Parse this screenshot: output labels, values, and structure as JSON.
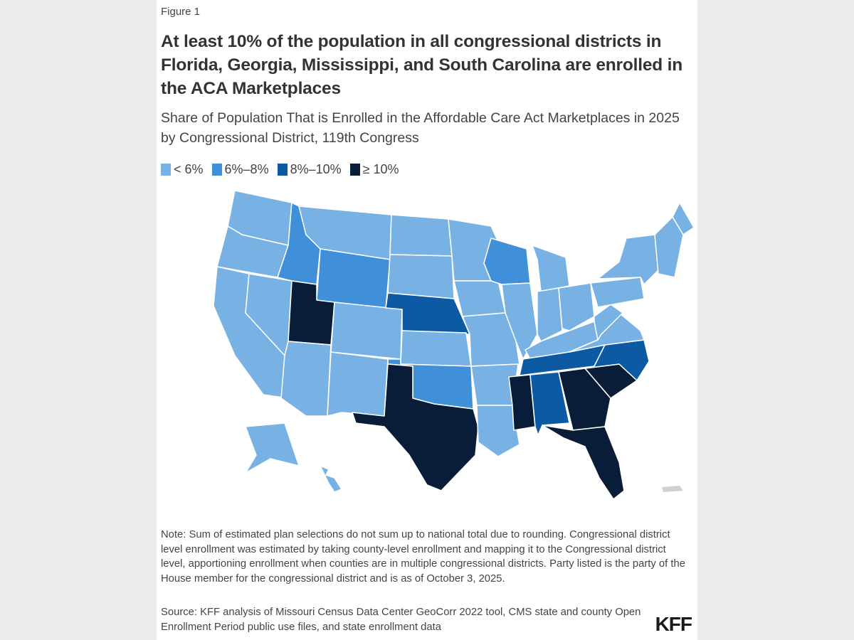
{
  "figure_label": "Figure 1",
  "title": "At least 10% of the population in all congressional districts in Florida, Georgia, Mississippi, and South Carolina are enrolled in the ACA Marketplaces",
  "subtitle": "Share of Population That is Enrolled in the Affordable Care Act Marketplaces in 2025 by Congressional District, 119th Congress",
  "legend": [
    {
      "label": "< 6%",
      "color": "#78b2e4"
    },
    {
      "label": "6%–8%",
      "color": "#3f90d8"
    },
    {
      "label": "8%–10%",
      "color": "#0b5aa3"
    },
    {
      "label": "≥ 10%",
      "color": "#0a1d38"
    }
  ],
  "chart_data": {
    "type": "choropleth",
    "categories": [
      "< 6%",
      "6%–8%",
      "8%–10%",
      "≥ 10%"
    ],
    "states": [
      {
        "state": "WA",
        "category": 0
      },
      {
        "state": "OR",
        "category": 0
      },
      {
        "state": "CA",
        "category": 0
      },
      {
        "state": "NV",
        "category": 0
      },
      {
        "state": "ID",
        "category": 1
      },
      {
        "state": "MT",
        "category": 0
      },
      {
        "state": "WY",
        "category": 1
      },
      {
        "state": "UT",
        "category": 3
      },
      {
        "state": "CO",
        "category": 0
      },
      {
        "state": "AZ",
        "category": 0
      },
      {
        "state": "NM",
        "category": 0
      },
      {
        "state": "ND",
        "category": 0
      },
      {
        "state": "SD",
        "category": 0
      },
      {
        "state": "NE",
        "category": 2
      },
      {
        "state": "KS",
        "category": 0
      },
      {
        "state": "OK",
        "category": 1
      },
      {
        "state": "TX",
        "category": 3
      },
      {
        "state": "MN",
        "category": 0
      },
      {
        "state": "IA",
        "category": 0
      },
      {
        "state": "MO",
        "category": 0
      },
      {
        "state": "AR",
        "category": 0
      },
      {
        "state": "LA",
        "category": 0
      },
      {
        "state": "WI",
        "category": 1
      },
      {
        "state": "IL",
        "category": 0
      },
      {
        "state": "MI",
        "category": 0
      },
      {
        "state": "IN",
        "category": 0
      },
      {
        "state": "OH",
        "category": 0
      },
      {
        "state": "KY",
        "category": 0
      },
      {
        "state": "TN",
        "category": 2
      },
      {
        "state": "MS",
        "category": 3
      },
      {
        "state": "AL",
        "category": 2
      },
      {
        "state": "GA",
        "category": 3
      },
      {
        "state": "FL",
        "category": 3
      },
      {
        "state": "SC",
        "category": 3
      },
      {
        "state": "NC",
        "category": 2
      },
      {
        "state": "VA",
        "category": 0
      },
      {
        "state": "WV",
        "category": 0
      },
      {
        "state": "PA",
        "category": 0
      },
      {
        "state": "NY",
        "category": 0
      },
      {
        "state": "NE-region",
        "category": 0
      },
      {
        "state": "ME",
        "category": 0
      },
      {
        "state": "AK",
        "category": 0
      },
      {
        "state": "HI",
        "category": 0
      }
    ]
  },
  "note": "Note: Sum of estimated plan selections do not sum up to national total due to rounding. Congressional district level enrollment was estimated by taking county-level enrollment and mapping it to the Congressional district level, apportioning enrollment when counties are in multiple congressional districts. Party listed is the party of the House member for the congressional district and is as of October 3, 2025.",
  "source": "Source: KFF analysis of Missouri Census Data Center GeoCorr 2022 tool, CMS state and county Open Enrollment Period public use files, and state enrollment data",
  "logo": "KFF"
}
